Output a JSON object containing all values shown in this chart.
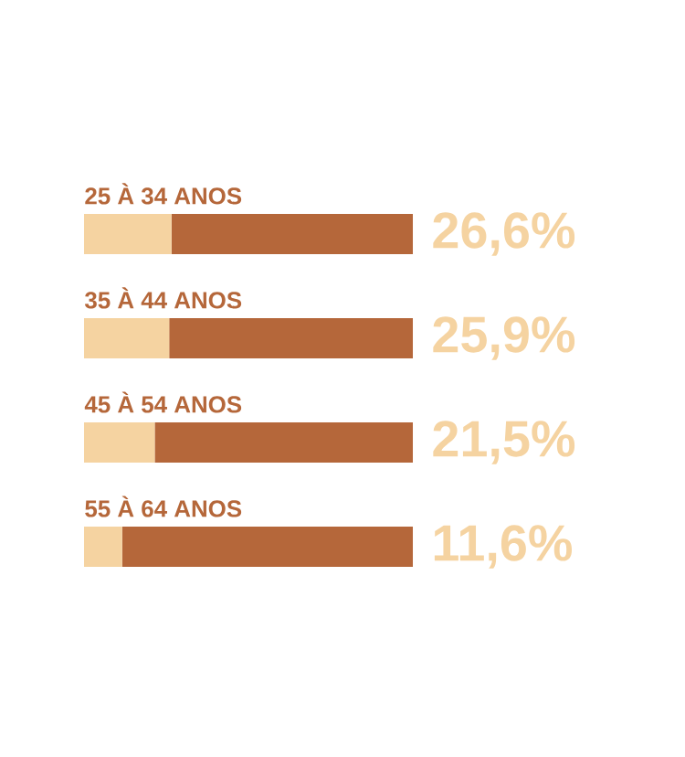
{
  "chart_data": {
    "type": "bar",
    "orientation": "horizontal",
    "stacked": true,
    "categories": [
      "25 À 34 ANOS",
      "35 À 44 ANOS",
      "45 À 54 ANOS",
      "55 À 64 ANOS"
    ],
    "xlim": [
      0,
      100
    ],
    "series": [
      {
        "color": "#f5d3a1",
        "values": [
          26.6,
          25.9,
          21.5,
          11.6
        ],
        "value_labels": [
          "26,6%",
          "25,9%",
          "21,5%",
          "11,6%"
        ]
      },
      {
        "color": "#b5673a",
        "values": [
          73.4,
          74.1,
          78.5,
          88.4
        ]
      }
    ]
  }
}
